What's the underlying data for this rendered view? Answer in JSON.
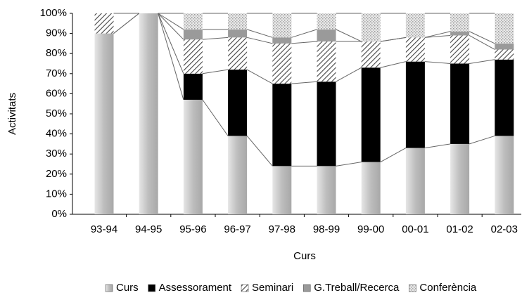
{
  "chart_data": {
    "type": "stacked_bar",
    "x_label": "Curs",
    "y_label": "Activitats",
    "categories": [
      "93-94",
      "94-95",
      "95-96",
      "96-97",
      "97-98",
      "98-99",
      "99-00",
      "00-01",
      "01-02",
      "02-03"
    ],
    "series": [
      {
        "name": "Curs",
        "color": "#bdbdbd",
        "pattern": "gradient",
        "values": [
          90,
          100,
          57,
          39,
          24,
          24,
          26,
          33,
          35,
          39
        ]
      },
      {
        "name": "Assessorament",
        "color": "#000000",
        "pattern": "solid",
        "values": [
          0,
          0,
          13,
          33,
          41,
          42,
          47,
          43,
          40,
          38
        ]
      },
      {
        "name": "Seminari",
        "color": "#444444",
        "pattern": "hatch",
        "values": [
          10,
          0,
          17,
          16,
          20,
          20,
          13,
          12,
          14,
          5
        ]
      },
      {
        "name": "G.Treball/Recerca",
        "color": "#9a9a9a",
        "pattern": "solid",
        "values": [
          0,
          0,
          5,
          4,
          3,
          6,
          0,
          0,
          2,
          3
        ]
      },
      {
        "name": "Conferència",
        "color": "#cfcfcf",
        "pattern": "dots",
        "values": [
          0,
          0,
          8,
          8,
          12,
          8,
          14,
          12,
          9,
          15
        ]
      }
    ],
    "ylim": [
      0,
      100
    ],
    "yticks": [
      {
        "value": 0,
        "label": "0%"
      },
      {
        "value": 10,
        "label": "10%"
      },
      {
        "value": 20,
        "label": "20%"
      },
      {
        "value": 30,
        "label": "30%"
      },
      {
        "value": 40,
        "label": "40%"
      },
      {
        "value": 50,
        "label": "50%"
      },
      {
        "value": 60,
        "label": "60%"
      },
      {
        "value": 70,
        "label": "70%"
      },
      {
        "value": 80,
        "label": "80%"
      },
      {
        "value": 90,
        "label": "90%"
      },
      {
        "value": 100,
        "label": "100%"
      }
    ],
    "legend": "bottom",
    "series_lines": true
  }
}
